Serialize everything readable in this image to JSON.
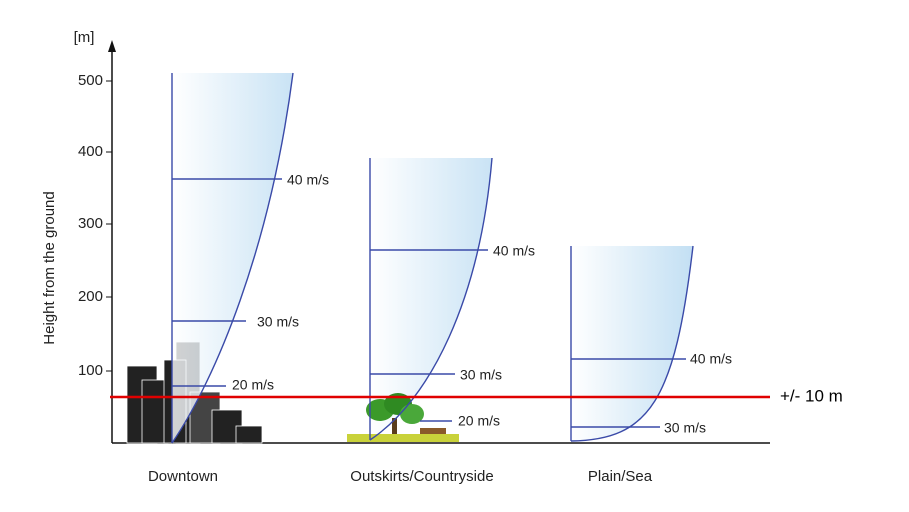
{
  "axis": {
    "unit": "[m]",
    "label": "Height from the ground",
    "ticks": [
      "100",
      "200",
      "300",
      "400",
      "500"
    ]
  },
  "profiles": [
    {
      "name": "Downtown",
      "speeds": [
        "40 m/s",
        "30 m/s",
        "20 m/s"
      ]
    },
    {
      "name": "Outskirts/Countryside",
      "speeds": [
        "40 m/s",
        "30 m/s",
        "20 m/s"
      ]
    },
    {
      "name": "Plain/Sea",
      "speeds": [
        "40 m/s",
        "30 m/s"
      ]
    }
  ],
  "annotation": "+/- 10 m"
}
